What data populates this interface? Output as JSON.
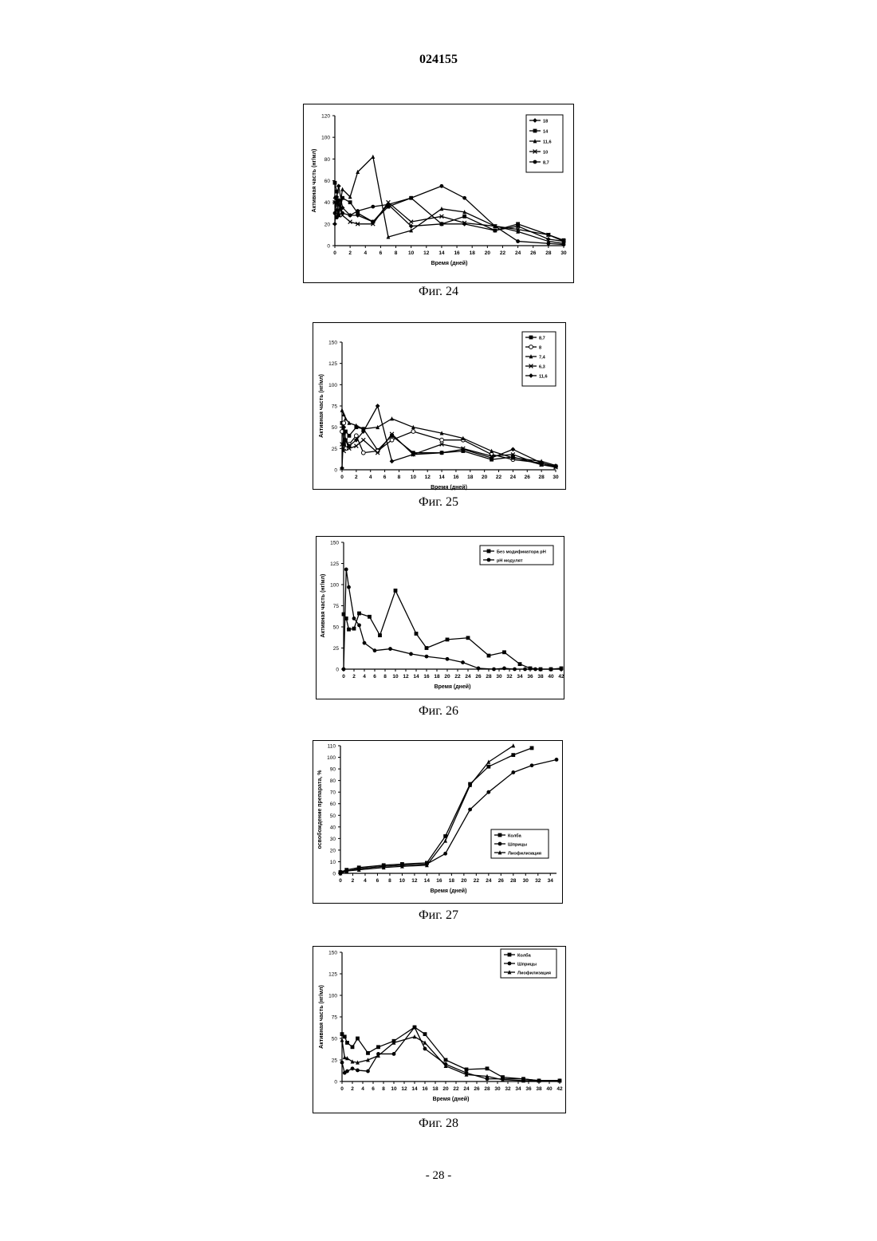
{
  "header": {
    "doc_number": "024155"
  },
  "footer": {
    "page_label": "- 28 -"
  },
  "colors": {
    "ink": "#000000",
    "paper": "#ffffff"
  },
  "chart_data": [
    {
      "caption": "Фиг. 24",
      "type": "line",
      "xlabel": "Время (дней)",
      "ylabel": "Активная часть (нг/мл)",
      "xlim": [
        0,
        30
      ],
      "ylim": [
        0,
        120
      ],
      "xticks": [
        0,
        2,
        4,
        6,
        8,
        10,
        12,
        14,
        16,
        18,
        20,
        22,
        24,
        26,
        28,
        30
      ],
      "yticks": [
        0,
        20,
        40,
        60,
        80,
        100,
        120
      ],
      "legend": {
        "position": "top-right",
        "entries": [
          "18",
          "14",
          "11,6",
          "10",
          "8,7"
        ]
      },
      "grid": false,
      "series": [
        {
          "name": "18",
          "marker": "diamond",
          "x": [
            0,
            0.25,
            0.5,
            1,
            2,
            3,
            5,
            7,
            10,
            14,
            17,
            21,
            24,
            28,
            30
          ],
          "y": [
            20,
            45,
            55,
            35,
            28,
            28,
            22,
            38,
            18,
            20,
            20,
            14,
            18,
            6,
            4
          ]
        },
        {
          "name": "14",
          "marker": "square",
          "x": [
            0,
            0.25,
            0.5,
            1,
            2,
            3,
            5,
            7,
            10,
            14,
            17,
            21,
            24,
            28,
            30
          ],
          "y": [
            58,
            50,
            28,
            44,
            40,
            30,
            22,
            36,
            44,
            20,
            27,
            14,
            20,
            10,
            5
          ]
        },
        {
          "name": "11,6",
          "marker": "triangle",
          "x": [
            0,
            0.25,
            0.5,
            1,
            2,
            3,
            5,
            7,
            10,
            14,
            17,
            21,
            24,
            28,
            30
          ],
          "y": [
            45,
            40,
            30,
            52,
            45,
            68,
            82,
            8,
            14,
            34,
            31,
            18,
            13,
            4,
            2
          ]
        },
        {
          "name": "10",
          "marker": "cross",
          "x": [
            0,
            0.25,
            0.5,
            1,
            2,
            3,
            5,
            7,
            10,
            14,
            17,
            21,
            24,
            28,
            30
          ],
          "y": [
            40,
            32,
            38,
            28,
            22,
            20,
            20,
            40,
            22,
            27,
            21,
            18,
            15,
            10,
            4
          ]
        },
        {
          "name": "8,7",
          "marker": "circle",
          "x": [
            0,
            0.25,
            0.5,
            1,
            2,
            3,
            5,
            7,
            10,
            14,
            17,
            21,
            24,
            28,
            30
          ],
          "y": [
            30,
            26,
            42,
            30,
            28,
            32,
            36,
            38,
            44,
            55,
            44,
            18,
            4,
            2,
            1
          ]
        }
      ]
    },
    {
      "caption": "Фиг. 25",
      "type": "line",
      "xlabel": "Время (дней)",
      "ylabel": "Активная часть (нг/мл)",
      "xlim": [
        0,
        30
      ],
      "ylim": [
        0,
        150
      ],
      "xticks": [
        0,
        2,
        4,
        6,
        8,
        10,
        12,
        14,
        16,
        18,
        20,
        22,
        24,
        26,
        28,
        30
      ],
      "yticks": [
        0,
        25,
        50,
        75,
        100,
        125,
        150
      ],
      "legend": {
        "position": "top-right",
        "entries": [
          "8,7",
          "8",
          "7,4",
          "6,3",
          "11,6"
        ]
      },
      "grid": false,
      "series": [
        {
          "name": "8,7",
          "marker": "square",
          "x": [
            0,
            0.25,
            0.5,
            1,
            2,
            3,
            5,
            7,
            10,
            14,
            17,
            21,
            24,
            28,
            30
          ],
          "y": [
            55,
            30,
            45,
            40,
            50,
            48,
            23,
            40,
            20,
            20,
            22,
            12,
            15,
            6,
            4
          ]
        },
        {
          "name": "8",
          "marker": "circle-open",
          "x": [
            0,
            0.25,
            0.5,
            1,
            2,
            3,
            5,
            7,
            10,
            14,
            17,
            21,
            24,
            28,
            30
          ],
          "y": [
            45,
            55,
            25,
            30,
            40,
            20,
            22,
            35,
            45,
            35,
            35,
            18,
            12,
            8,
            4
          ]
        },
        {
          "name": "7,4",
          "marker": "triangle",
          "x": [
            0,
            0.25,
            0.5,
            1,
            2,
            3,
            5,
            7,
            10,
            14,
            17,
            21,
            24,
            28,
            30
          ],
          "y": [
            70,
            65,
            60,
            55,
            52,
            48,
            50,
            60,
            50,
            43,
            37,
            22,
            14,
            10,
            5
          ]
        },
        {
          "name": "6,3",
          "marker": "cross",
          "x": [
            0,
            0.25,
            0.5,
            1,
            2,
            3,
            5,
            7,
            10,
            14,
            17,
            21,
            24,
            28,
            30
          ],
          "y": [
            30,
            22,
            35,
            25,
            28,
            35,
            20,
            42,
            18,
            30,
            25,
            16,
            18,
            6,
            3
          ]
        },
        {
          "name": "11,6",
          "marker": "diamond",
          "x": [
            0,
            0.25,
            0.5,
            1,
            2,
            3,
            5,
            7,
            10,
            14,
            17,
            21,
            24,
            28,
            30
          ],
          "y": [
            2,
            50,
            35,
            28,
            35,
            45,
            75,
            10,
            18,
            20,
            24,
            14,
            24,
            8,
            4
          ]
        }
      ]
    },
    {
      "caption": "Фиг. 26",
      "type": "line",
      "xlabel": "Время (дней)",
      "ylabel": "Активная часть (нг/мл)",
      "xlim": [
        0,
        42
      ],
      "ylim": [
        0,
        150
      ],
      "xticks": [
        0,
        2,
        4,
        6,
        8,
        10,
        12,
        14,
        16,
        18,
        20,
        22,
        24,
        26,
        28,
        30,
        32,
        34,
        36,
        38,
        40,
        42
      ],
      "yticks": [
        0,
        25,
        50,
        75,
        100,
        125,
        150
      ],
      "legend": {
        "position": "top-right",
        "entries": [
          "Без модификатора pH",
          "pH модулят"
        ]
      },
      "grid": false,
      "series": [
        {
          "name": "Без модификатора pH",
          "marker": "square",
          "x": [
            0,
            0.5,
            1,
            2,
            3,
            5,
            7,
            10,
            14,
            16,
            20,
            24,
            28,
            31,
            34,
            36,
            38,
            40,
            42
          ],
          "y": [
            65,
            60,
            47,
            48,
            66,
            62,
            40,
            93,
            42,
            25,
            35,
            37,
            16,
            20,
            6,
            1,
            0,
            0,
            1
          ]
        },
        {
          "name": "pH модулят",
          "marker": "circle",
          "x": [
            0,
            0.5,
            1,
            2,
            3,
            4,
            6,
            9,
            13,
            16,
            20,
            23,
            26,
            29,
            31,
            33,
            35,
            37,
            40,
            42
          ],
          "y": [
            0,
            118,
            97,
            60,
            52,
            31,
            22,
            24,
            18,
            15,
            12,
            8,
            1,
            0,
            1,
            0,
            0,
            0,
            0,
            0
          ]
        }
      ]
    },
    {
      "caption": "Фиг. 27",
      "type": "line",
      "xlabel": "Время (дней)",
      "ylabel": "освобождение препарата, %",
      "xlim": [
        0,
        35
      ],
      "ylim": [
        0,
        110
      ],
      "xticks": [
        0,
        2,
        4,
        6,
        8,
        10,
        12,
        14,
        16,
        18,
        20,
        22,
        24,
        26,
        28,
        30,
        32,
        34
      ],
      "yticks": [
        0,
        10,
        20,
        30,
        40,
        50,
        60,
        70,
        80,
        90,
        100,
        110
      ],
      "legend": {
        "position": "bottom-right",
        "entries": [
          "Колба",
          "Шприцы",
          "Лиофилизация"
        ]
      },
      "grid": false,
      "series": [
        {
          "name": "Колба",
          "marker": "square",
          "x": [
            0,
            1,
            3,
            7,
            10,
            14,
            17,
            21,
            24,
            28,
            31
          ],
          "y": [
            1,
            3,
            5,
            7,
            8,
            9,
            32,
            77,
            92,
            102,
            108
          ]
        },
        {
          "name": "Шприцы",
          "marker": "circle",
          "x": [
            0,
            1,
            3,
            7,
            10,
            14,
            17,
            21,
            24,
            28,
            31,
            35
          ],
          "y": [
            1,
            2,
            4,
            6,
            7,
            8,
            17,
            55,
            70,
            87,
            93,
            98
          ]
        },
        {
          "name": "Лиофилизация",
          "marker": "triangle",
          "x": [
            0,
            1,
            3,
            7,
            10,
            14,
            17,
            21,
            24,
            28
          ],
          "y": [
            0,
            2,
            3,
            5,
            6,
            7,
            28,
            76,
            96,
            110
          ]
        }
      ]
    },
    {
      "caption": "Фиг. 28",
      "type": "line",
      "xlabel": "Время (дней)",
      "ylabel": "Активная часть (нг/мл)",
      "xlim": [
        0,
        42
      ],
      "ylim": [
        0,
        150
      ],
      "xticks": [
        0,
        2,
        4,
        6,
        8,
        10,
        12,
        14,
        16,
        18,
        20,
        22,
        24,
        26,
        28,
        30,
        32,
        34,
        36,
        38,
        40,
        42
      ],
      "yticks": [
        0,
        25,
        50,
        75,
        100,
        125,
        150
      ],
      "legend": {
        "position": "top-right",
        "entries": [
          "Колба",
          "Шприцы",
          "Лиофилизация"
        ]
      },
      "grid": false,
      "series": [
        {
          "name": "Колба",
          "marker": "square",
          "x": [
            0,
            0.5,
            1,
            2,
            3,
            5,
            7,
            10,
            14,
            16,
            20,
            24,
            28,
            31,
            35,
            38,
            42
          ],
          "y": [
            55,
            52,
            45,
            40,
            50,
            33,
            40,
            47,
            63,
            55,
            25,
            14,
            15,
            5,
            3,
            1,
            1
          ]
        },
        {
          "name": "Шприцы",
          "marker": "circle",
          "x": [
            0,
            0.5,
            1,
            2,
            3,
            5,
            7,
            10,
            14,
            16,
            20,
            24,
            28,
            31,
            35,
            38,
            42
          ],
          "y": [
            22,
            10,
            12,
            15,
            13,
            12,
            32,
            32,
            63,
            38,
            20,
            10,
            3,
            3,
            3,
            1,
            1
          ]
        },
        {
          "name": "Лиофилизация",
          "marker": "triangle",
          "x": [
            0,
            0.5,
            1,
            2,
            3,
            5,
            7,
            10,
            14,
            16,
            20,
            24,
            28,
            31,
            35,
            38,
            42
          ],
          "y": [
            48,
            28,
            27,
            23,
            22,
            25,
            30,
            45,
            52,
            45,
            18,
            8,
            6,
            2,
            1,
            1,
            1
          ]
        }
      ]
    }
  ]
}
